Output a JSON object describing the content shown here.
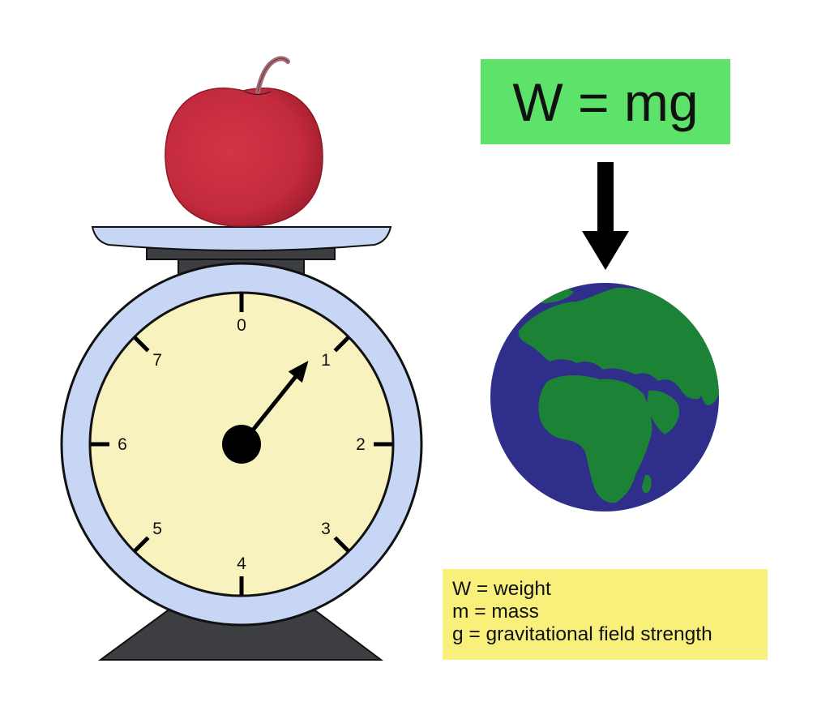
{
  "formula": {
    "text": "W = mg",
    "background": "#5de36a"
  },
  "scale": {
    "dial_labels": [
      "0",
      "1",
      "2",
      "3",
      "4",
      "5",
      "6",
      "7"
    ],
    "needle_reading": 1,
    "dial_max": 8,
    "colors": {
      "ring": "#c6d6f4",
      "dial_face": "#f8f2be",
      "base": "#3d3e42",
      "platter": "#c6d6f4",
      "apple": "#c8283d"
    }
  },
  "earth": {
    "ocean_color": "#2f2e8a",
    "land_color": "#1c8336"
  },
  "legend": {
    "background": "#f8f07a",
    "lines": [
      "W = weight",
      "m = mass",
      "g = gravitational field strength"
    ]
  }
}
